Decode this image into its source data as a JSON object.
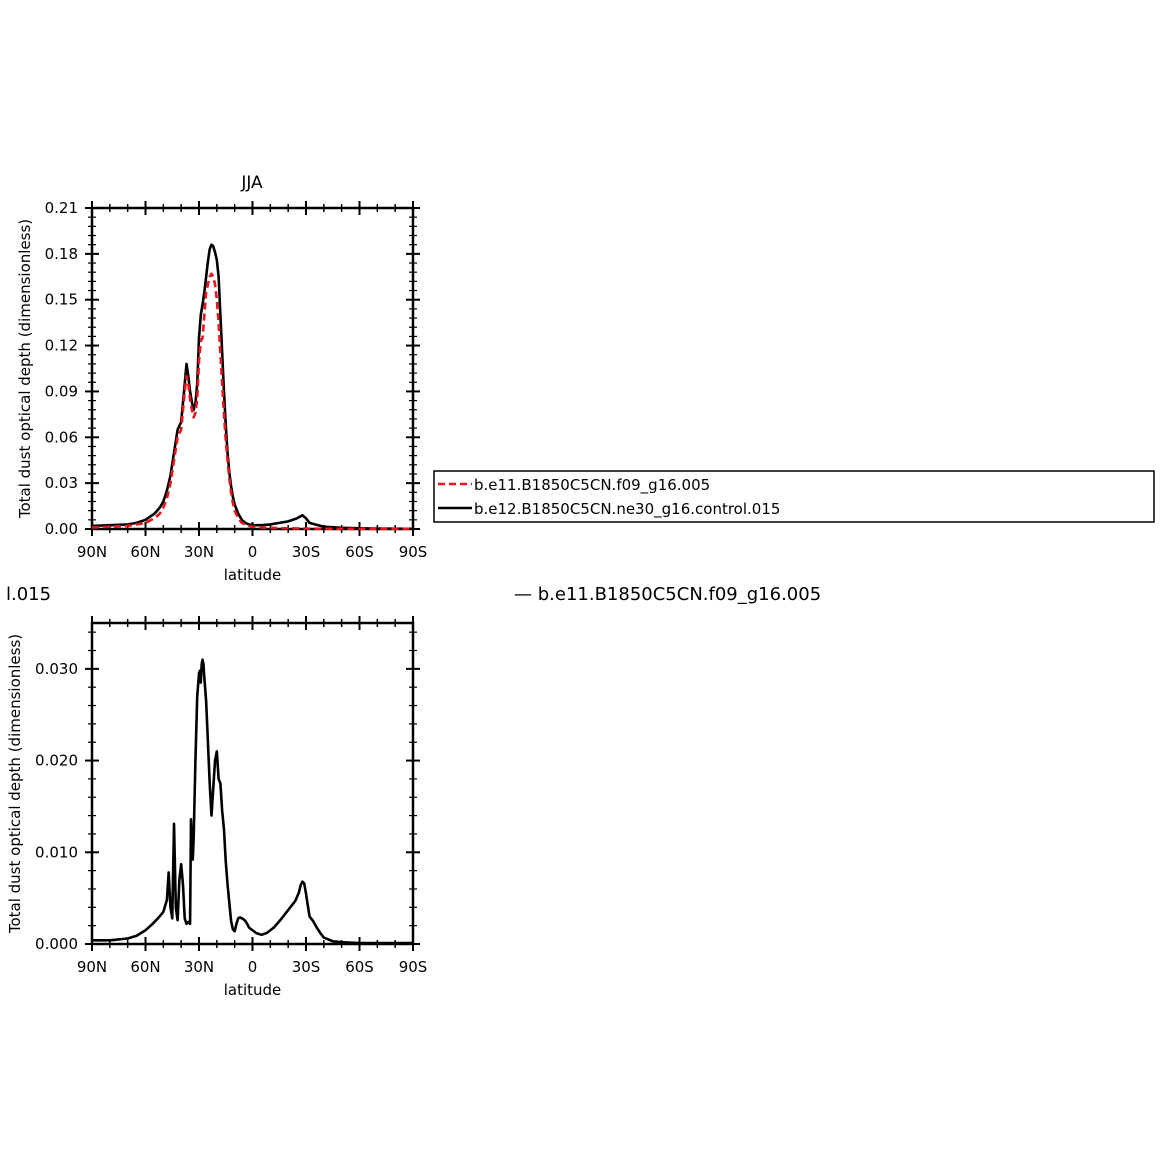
{
  "chart_data": [
    {
      "type": "line",
      "title": "JJA",
      "xlabel": "latitude",
      "ylabel": "Total dust optical depth (dimensionless)",
      "xlim": [
        90,
        -90
      ],
      "ylim": [
        0,
        0.21
      ],
      "x_ticks": [
        90,
        60,
        30,
        0,
        -30,
        -60,
        -90
      ],
      "x_tick_labels": [
        "90N",
        "60N",
        "30N",
        "0",
        "30S",
        "60S",
        "90S"
      ],
      "y_ticks": [
        0,
        0.03,
        0.06,
        0.09,
        0.12,
        0.15,
        0.18,
        0.21
      ],
      "y_tick_labels": [
        "0.00",
        "0.03",
        "0.06",
        "0.09",
        "0.12",
        "0.15",
        "0.18",
        "0.21"
      ],
      "legend": "right-outside",
      "series": [
        {
          "name": "b.e11.B1850C5CN.f09_g16.005",
          "color": "#e8141e",
          "dash": "dashed",
          "x": [
            90,
            80,
            70,
            65,
            60,
            55,
            52,
            50,
            48,
            46,
            44,
            42,
            40,
            38,
            37,
            36,
            35,
            34,
            33,
            32,
            31,
            30,
            29,
            28,
            27,
            26,
            25,
            24,
            23,
            22,
            21,
            20,
            19,
            18,
            17,
            16,
            15,
            14,
            13,
            12,
            11,
            10,
            8,
            6,
            4,
            2,
            0,
            -5,
            -10,
            -15,
            -20,
            -25,
            -28,
            -30,
            -32,
            -35,
            -40,
            -50,
            -60,
            -70,
            -80,
            -90
          ],
          "y": [
            0.001,
            0.0015,
            0.002,
            0.003,
            0.004,
            0.007,
            0.01,
            0.014,
            0.02,
            0.03,
            0.045,
            0.06,
            0.065,
            0.09,
            0.1,
            0.095,
            0.085,
            0.078,
            0.073,
            0.076,
            0.085,
            0.11,
            0.123,
            0.125,
            0.14,
            0.155,
            0.16,
            0.165,
            0.167,
            0.165,
            0.16,
            0.15,
            0.135,
            0.115,
            0.095,
            0.075,
            0.058,
            0.045,
            0.033,
            0.024,
            0.017,
            0.012,
            0.007,
            0.004,
            0.003,
            0.002,
            0.0015,
            0.001,
            0.0008,
            0.0006,
            0.0005,
            0.0004,
            0.0003,
            0.0003,
            0.0002,
            0.0002,
            0.0001,
            0.0001,
            0.0001,
            0.0001,
            0.0001,
            0.0001
          ]
        },
        {
          "name": "b.e12.B1850C5CN.ne30_g16.control.015",
          "color": "#000000",
          "dash": "solid",
          "x": [
            90,
            80,
            70,
            65,
            60,
            55,
            52,
            50,
            48,
            46,
            44,
            42,
            40,
            38,
            37,
            36,
            35,
            34,
            33,
            32,
            31,
            30,
            29,
            28,
            27,
            26,
            25,
            24,
            23,
            22,
            21,
            20,
            19,
            18,
            17,
            16,
            15,
            14,
            13,
            12,
            11,
            10,
            8,
            6,
            4,
            2,
            0,
            -5,
            -10,
            -15,
            -20,
            -25,
            -28,
            -30,
            -32,
            -35,
            -40,
            -50,
            -60,
            -70,
            -80,
            -90
          ],
          "y": [
            0.002,
            0.0025,
            0.003,
            0.004,
            0.006,
            0.01,
            0.014,
            0.018,
            0.025,
            0.035,
            0.05,
            0.065,
            0.07,
            0.095,
            0.108,
            0.1,
            0.09,
            0.083,
            0.078,
            0.082,
            0.095,
            0.125,
            0.14,
            0.147,
            0.155,
            0.165,
            0.175,
            0.183,
            0.186,
            0.185,
            0.181,
            0.176,
            0.165,
            0.14,
            0.115,
            0.09,
            0.068,
            0.05,
            0.037,
            0.028,
            0.021,
            0.016,
            0.01,
            0.006,
            0.004,
            0.003,
            0.0025,
            0.0025,
            0.003,
            0.004,
            0.005,
            0.007,
            0.009,
            0.007,
            0.004,
            0.003,
            0.0015,
            0.0008,
            0.0005,
            0.0003,
            0.0002,
            0.0001
          ]
        }
      ]
    },
    {
      "type": "line",
      "title": "",
      "xlabel": "latitude",
      "ylabel": "Total dust optical depth (dimensionless)",
      "xlim": [
        90,
        -90
      ],
      "ylim": [
        0,
        0.035
      ],
      "x_ticks": [
        90,
        60,
        30,
        0,
        -30,
        -60,
        -90
      ],
      "x_tick_labels": [
        "90N",
        "60N",
        "30N",
        "0",
        "30S",
        "60S",
        "90S"
      ],
      "y_ticks": [
        0,
        0.01,
        0.02,
        0.03
      ],
      "y_tick_labels": [
        "0.000",
        "0.010",
        "0.020",
        "0.030"
      ],
      "series": [
        {
          "color": "#000000",
          "dash": "solid",
          "x": [
            90,
            80,
            70,
            65,
            60,
            56,
            53,
            50,
            48,
            47,
            46,
            45,
            44,
            43,
            42,
            41,
            40,
            39,
            38,
            37,
            36,
            35,
            34.5,
            34,
            33.5,
            33,
            32,
            31,
            30,
            29.5,
            29,
            28.5,
            28,
            27.5,
            27,
            26,
            25,
            24,
            23,
            22,
            21,
            20,
            19,
            18,
            17,
            16,
            15,
            14,
            13,
            12,
            11,
            10,
            9,
            8,
            7,
            6,
            5,
            4,
            3,
            2,
            0,
            -2,
            -5,
            -8,
            -12,
            -16,
            -20,
            -24,
            -26,
            -27,
            -28,
            -29,
            -30,
            -31,
            -32,
            -34,
            -36,
            -38,
            -40,
            -45,
            -50,
            -60,
            -70,
            -80,
            -90
          ],
          "y": [
            0.0004,
            0.0004,
            0.0006,
            0.0009,
            0.0015,
            0.0022,
            0.0028,
            0.0035,
            0.0048,
            0.0078,
            0.004,
            0.0028,
            0.0131,
            0.004,
            0.0026,
            0.007,
            0.0087,
            0.0065,
            0.0028,
            0.0022,
            0.0024,
            0.0022,
            0.0136,
            0.011,
            0.0092,
            0.0115,
            0.02,
            0.027,
            0.0295,
            0.0298,
            0.0285,
            0.0305,
            0.031,
            0.0305,
            0.029,
            0.0265,
            0.022,
            0.0175,
            0.014,
            0.017,
            0.02,
            0.021,
            0.018,
            0.0175,
            0.0145,
            0.0125,
            0.009,
            0.0065,
            0.0045,
            0.0025,
            0.0016,
            0.0014,
            0.0022,
            0.0028,
            0.0029,
            0.0028,
            0.0027,
            0.0025,
            0.0022,
            0.0018,
            0.0015,
            0.0012,
            0.001,
            0.0012,
            0.0018,
            0.0027,
            0.0037,
            0.0047,
            0.0056,
            0.0064,
            0.0068,
            0.0066,
            0.0055,
            0.0042,
            0.003,
            0.0025,
            0.0018,
            0.0012,
            0.0007,
            0.0003,
            0.0002,
            0.0001,
            0.0001,
            0.0001,
            0.0001
          ]
        }
      ]
    }
  ],
  "overlay_text": {
    "left_fragment": "l.015",
    "right_fragment": "— b.e11.B1850C5CN.f09_g16.005"
  }
}
